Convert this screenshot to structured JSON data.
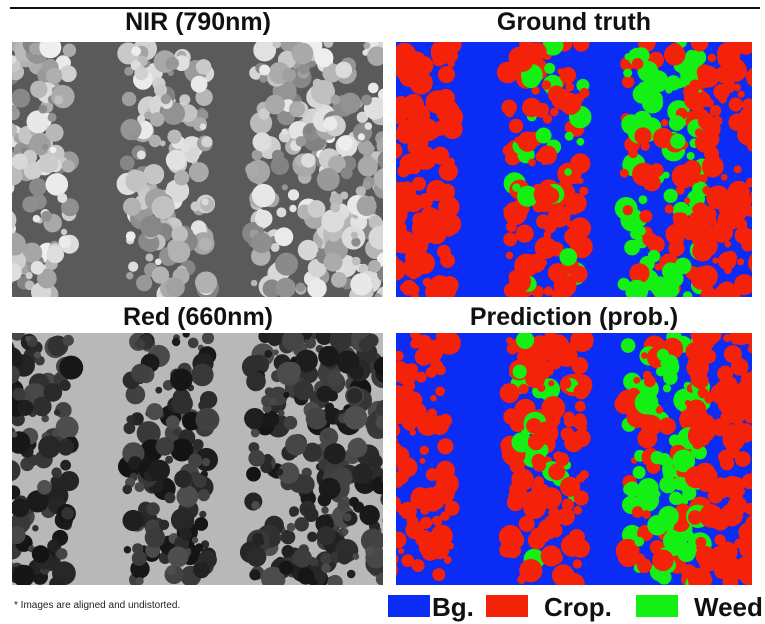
{
  "panels": [
    {
      "title": "NIR (790nm)"
    },
    {
      "title": "Ground truth"
    },
    {
      "title": "Red (660nm)"
    },
    {
      "title": "Prediction (prob.)"
    }
  ],
  "footnote": "* Images are aligned and undistorted.",
  "legend": [
    {
      "label": "Bg.",
      "color": "#0a2cf5"
    },
    {
      "label": "Crop.",
      "color": "#f5220a"
    },
    {
      "label": "Weed",
      "color": "#14f014"
    }
  ]
}
